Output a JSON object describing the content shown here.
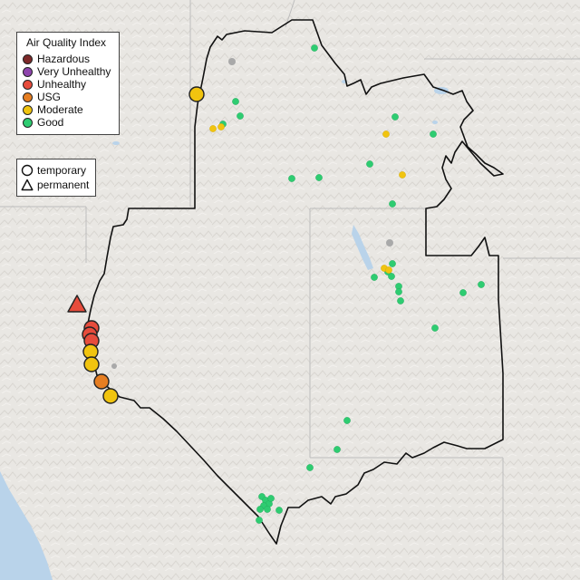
{
  "legend": {
    "title": "Air Quality Index",
    "categories": [
      {
        "label": "Hazardous",
        "color": "#7e2a2a"
      },
      {
        "label": "Very Unhealthy",
        "color": "#8e44ad"
      },
      {
        "label": "Unhealthy",
        "color": "#e74c3c"
      },
      {
        "label": "USG",
        "color": "#e67e22"
      },
      {
        "label": "Moderate",
        "color": "#f1c40f"
      },
      {
        "label": "Good",
        "color": "#2ecc71"
      }
    ]
  },
  "monitor_types": {
    "temporary": "temporary",
    "permanent": "permanent"
  },
  "colors": {
    "boundary": "#111111",
    "terrain": "#e9e7e3",
    "water": "#b9d3ea",
    "state_lines": "#bdbdbd"
  }
}
